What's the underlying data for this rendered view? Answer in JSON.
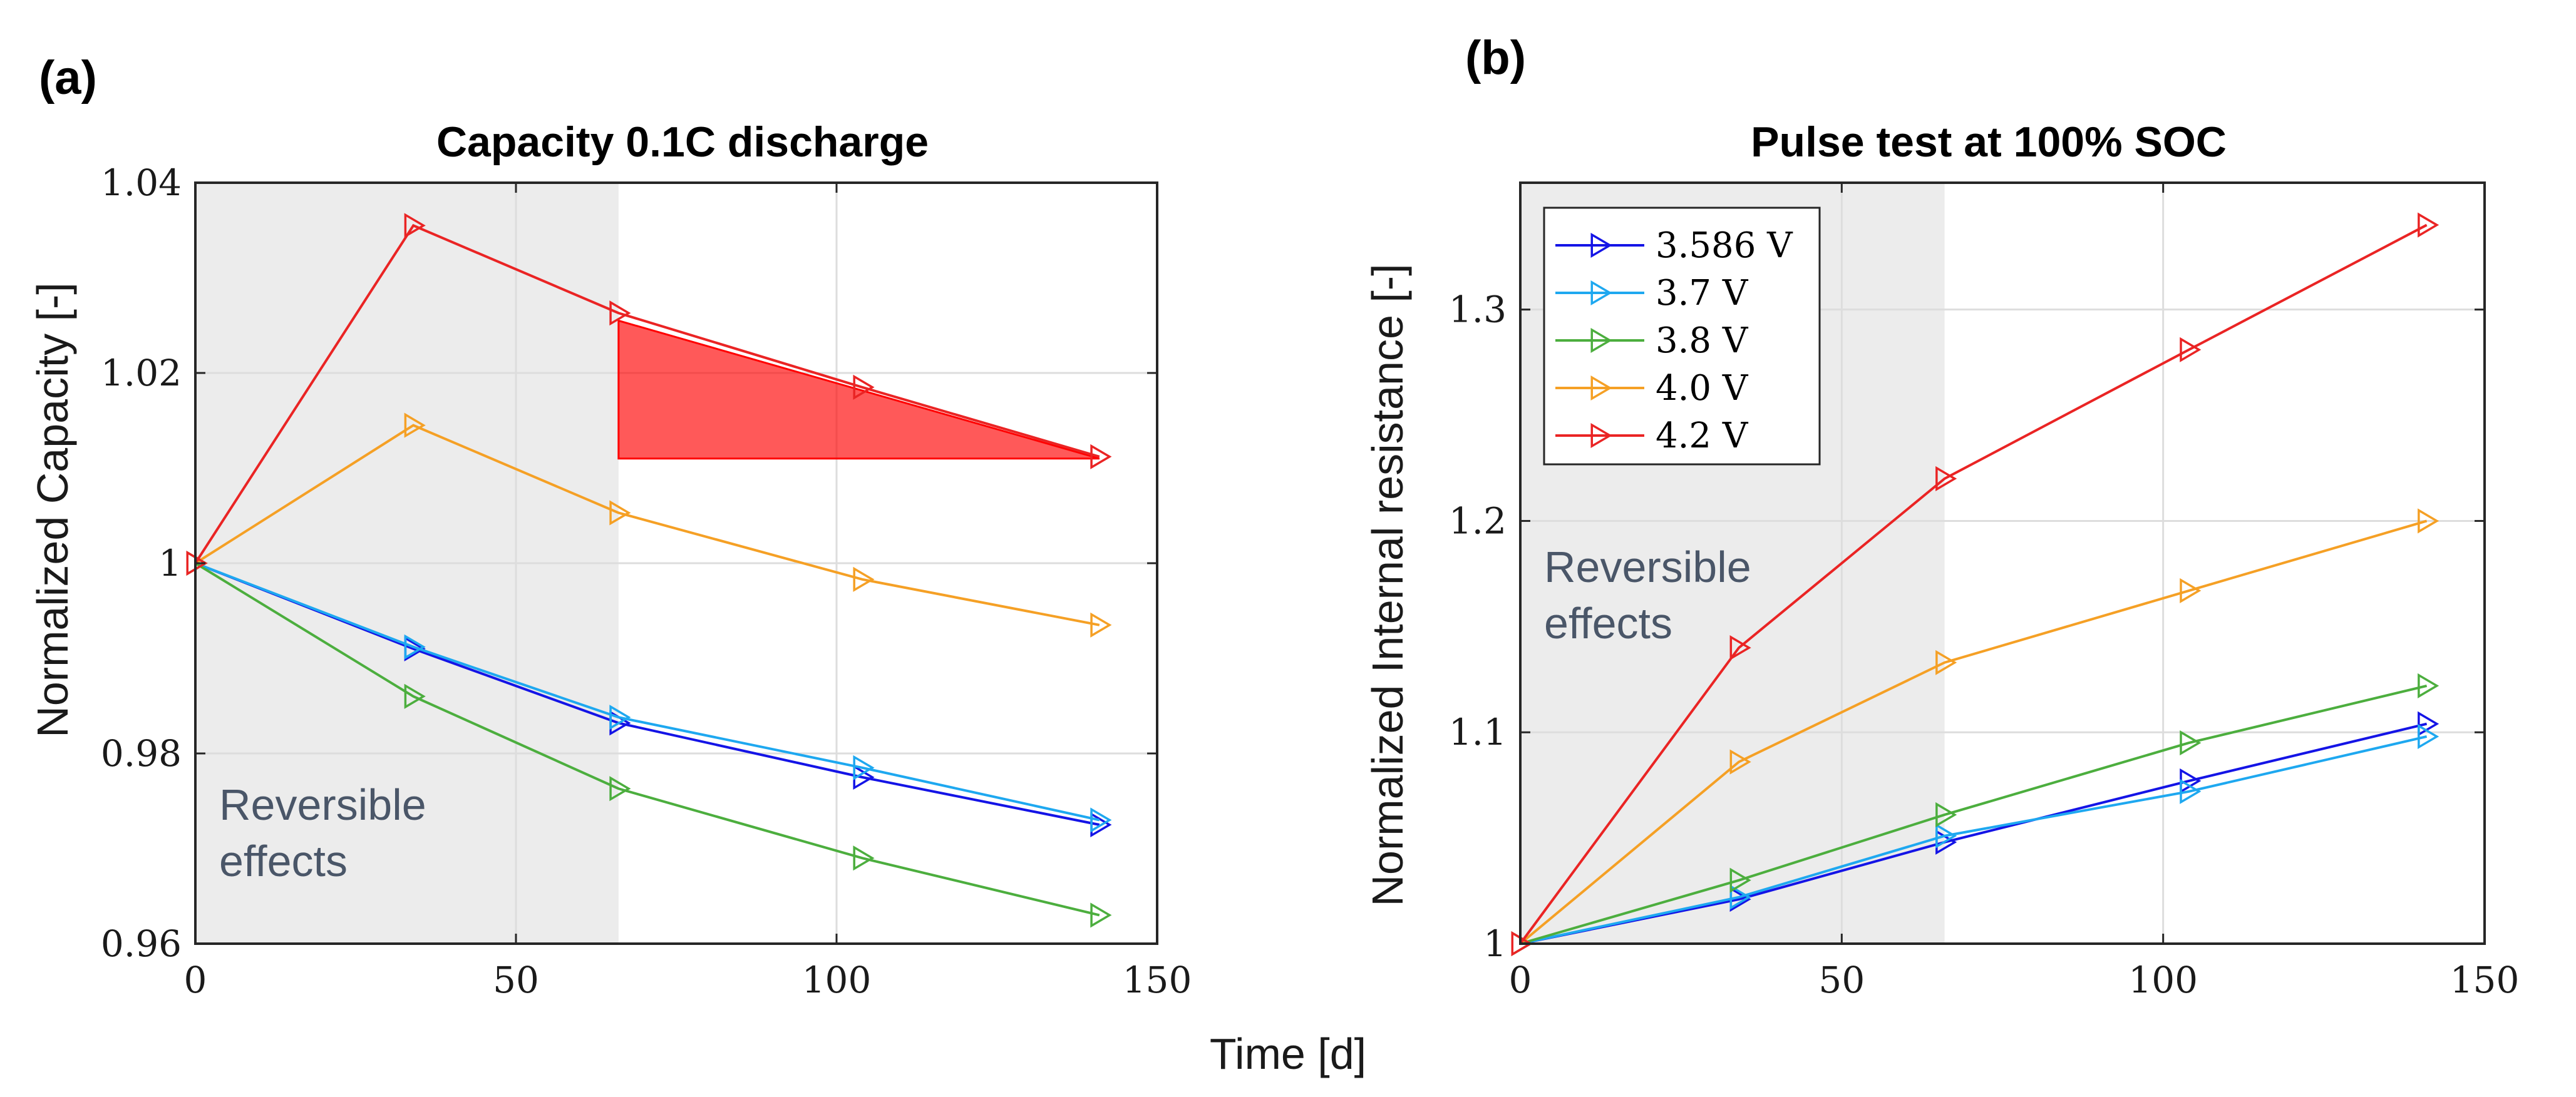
{
  "figure": {
    "shared_xlabel": "Time [d]"
  },
  "chart_data": [
    {
      "panel": "(a)",
      "type": "line",
      "title": "Capacity 0.1C discharge",
      "xlabel": "Time [d]",
      "ylabel": "Normalized Capacity [-]",
      "xlim": [
        0,
        150
      ],
      "ylim": [
        0.96,
        1.04
      ],
      "xticks": [
        0,
        50,
        100,
        150
      ],
      "yticks": [
        0.96,
        0.98,
        1,
        1.02,
        1.04
      ],
      "ytick_labels": [
        "0.96",
        "0.98",
        "1",
        "1.02",
        "1.04"
      ],
      "xtick_labels": [
        "0",
        "50",
        "100",
        "150"
      ],
      "grid": true,
      "shaded_region": {
        "x": [
          0,
          66
        ],
        "label_lines": [
          "Reversible",
          "effects"
        ]
      },
      "highlight_triangle": {
        "points": [
          [
            66,
            1.0255
          ],
          [
            66,
            1.011
          ],
          [
            141,
            1.011
          ]
        ],
        "color": "#ff0000"
      },
      "x": [
        0,
        34,
        66,
        104,
        141
      ],
      "series": [
        {
          "name": "3.586 V",
          "color": "#1414e6",
          "values": [
            1.0,
            0.991,
            0.9832,
            0.9775,
            0.9725
          ]
        },
        {
          "name": "3.7 V",
          "color": "#1ea8f0",
          "values": [
            1.0,
            0.9912,
            0.9838,
            0.9785,
            0.973
          ]
        },
        {
          "name": "3.8 V",
          "color": "#4cae3e",
          "values": [
            1.0,
            0.986,
            0.9763,
            0.969,
            0.963
          ]
        },
        {
          "name": "4.0 V",
          "color": "#f5a025",
          "values": [
            1.0,
            1.0145,
            1.0053,
            0.9983,
            0.9935
          ]
        },
        {
          "name": "4.2 V",
          "color": "#ea2424",
          "values": [
            1.0,
            1.0355,
            1.0263,
            1.0185,
            1.0112
          ]
        }
      ]
    },
    {
      "panel": "(b)",
      "type": "line",
      "title": "Pulse test at 100% SOC",
      "xlabel": "Time [d]",
      "ylabel": "Normalized Internal resistance [-]",
      "xlim": [
        0,
        150
      ],
      "ylim": [
        1,
        1.36
      ],
      "xticks": [
        0,
        50,
        100,
        150
      ],
      "yticks": [
        1,
        1.1,
        1.2,
        1.3
      ],
      "ytick_labels": [
        "1",
        "1.1",
        "1.2",
        "1.3"
      ],
      "xtick_labels": [
        "0",
        "50",
        "100",
        "150"
      ],
      "grid": true,
      "legend": "top-left",
      "shaded_region": {
        "x": [
          0,
          66
        ],
        "label_lines": [
          "Reversible",
          "effects"
        ]
      },
      "x": [
        0,
        34,
        66,
        104,
        141
      ],
      "series": [
        {
          "name": "3.586 V",
          "color": "#1414e6",
          "values": [
            1.0,
            1.021,
            1.048,
            1.077,
            1.104
          ]
        },
        {
          "name": "3.7 V",
          "color": "#1ea8f0",
          "values": [
            1.0,
            1.022,
            1.051,
            1.072,
            1.098
          ]
        },
        {
          "name": "3.8 V",
          "color": "#4cae3e",
          "values": [
            1.0,
            1.03,
            1.061,
            1.095,
            1.122
          ]
        },
        {
          "name": "4.0 V",
          "color": "#f5a025",
          "values": [
            1.0,
            1.086,
            1.133,
            1.167,
            1.2
          ]
        },
        {
          "name": "4.2 V",
          "color": "#ea2424",
          "values": [
            1.0,
            1.14,
            1.22,
            1.281,
            1.34
          ]
        }
      ]
    }
  ]
}
